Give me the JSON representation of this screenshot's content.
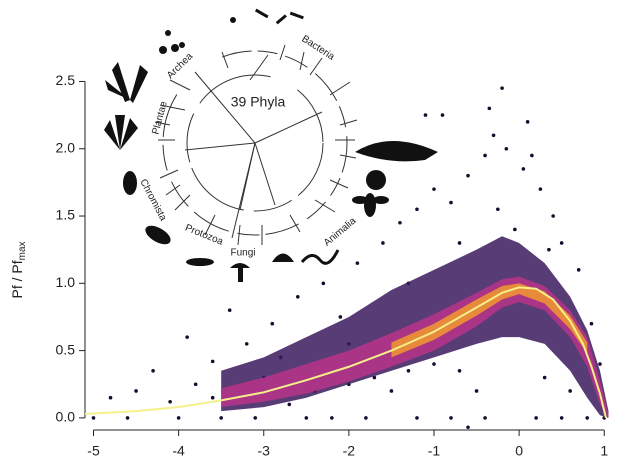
{
  "chart_data": {
    "type": "density-scatter",
    "y_label": "Pf / Pf",
    "y_label_subscript": "max",
    "xlim": [
      -5.1,
      1.15
    ],
    "ylim": [
      -0.09,
      2.6
    ],
    "xticks": [
      -5,
      -4,
      -3,
      -2,
      -1,
      0,
      1
    ],
    "yticks": [
      {
        "value": 0,
        "label": "0.0"
      },
      0.5,
      {
        "value": 1,
        "label": "1.0"
      },
      1.5,
      {
        "value": 2,
        "label": "2.0"
      },
      2.5
    ],
    "point_color": "#1a0b2e",
    "points": [
      [
        -4.3,
        0.35
      ],
      [
        -3.9,
        0.6
      ],
      [
        -3.6,
        0.42
      ],
      [
        -3.2,
        0.55
      ],
      [
        -3.4,
        0.8
      ],
      [
        -2.9,
        0.7
      ],
      [
        -2.6,
        0.9
      ],
      [
        -2.3,
        1.0
      ],
      [
        -2.1,
        0.75
      ],
      [
        -1.9,
        1.15
      ],
      [
        -1.6,
        1.3
      ],
      [
        -1.4,
        1.45
      ],
      [
        -1.2,
        1.55
      ],
      [
        -1.0,
        1.7
      ],
      [
        -0.8,
        1.6
      ],
      [
        -0.6,
        1.8
      ],
      [
        -0.4,
        1.95
      ],
      [
        -0.3,
        2.1
      ],
      [
        -0.2,
        2.45
      ],
      [
        -0.15,
        2.0
      ],
      [
        0.05,
        1.85
      ],
      [
        0.1,
        2.2
      ],
      [
        0.25,
        1.7
      ],
      [
        0.4,
        1.5
      ],
      [
        0.5,
        1.3
      ],
      [
        0.7,
        1.1
      ],
      [
        0.85,
        0.7
      ],
      [
        0.95,
        0.4
      ],
      [
        -0.9,
        2.25
      ],
      [
        -1.1,
        2.25
      ],
      [
        -0.35,
        2.3
      ],
      [
        0.15,
        1.95
      ],
      [
        -4.8,
        0.15
      ],
      [
        -4.5,
        0.2
      ],
      [
        -4.1,
        0.12
      ],
      [
        -3.8,
        0.25
      ],
      [
        -3.0,
        0.3
      ],
      [
        -2.7,
        0.1
      ],
      [
        -2.4,
        0.2
      ],
      [
        -2.0,
        0.25
      ],
      [
        -1.7,
        0.3
      ],
      [
        -1.5,
        0.2
      ],
      [
        -1.3,
        0.35
      ],
      [
        -0.7,
        0.35
      ],
      [
        -0.5,
        0.2
      ],
      [
        0.3,
        0.3
      ],
      [
        0.6,
        0.2
      ],
      [
        -5.0,
        0.0
      ],
      [
        -4.6,
        0.0
      ],
      [
        -4.0,
        0.0
      ],
      [
        -3.5,
        0.0
      ],
      [
        -3.1,
        0.0
      ],
      [
        -2.5,
        0.0
      ],
      [
        -2.2,
        0.0
      ],
      [
        -1.8,
        0.0
      ],
      [
        -1.2,
        0.0
      ],
      [
        -0.8,
        0.0
      ],
      [
        -0.4,
        0.0
      ],
      [
        0.2,
        0.0
      ],
      [
        0.5,
        0.0
      ],
      [
        0.8,
        0.0
      ],
      [
        1.0,
        0.0
      ],
      [
        -0.6,
        -0.07
      ],
      [
        -2.0,
        0.55
      ],
      [
        -1.0,
        0.4
      ],
      [
        -3.6,
        0.15
      ],
      [
        -2.8,
        0.45
      ],
      [
        -0.05,
        1.4
      ],
      [
        -0.25,
        1.55
      ],
      [
        0.35,
        1.25
      ],
      [
        -0.7,
        1.3
      ],
      [
        -1.3,
        1.0
      ]
    ],
    "bands": [
      {
        "color": "#3b1a5e",
        "x": [
          -3.5,
          -3,
          -2.5,
          -2,
          -1.5,
          -1,
          -0.5,
          -0.2,
          0,
          0.3,
          0.6,
          0.8,
          0.95,
          1.05
        ],
        "upper": [
          0.35,
          0.45,
          0.6,
          0.75,
          0.95,
          1.1,
          1.25,
          1.35,
          1.3,
          1.15,
          0.9,
          0.65,
          0.35,
          0.05
        ],
        "lower": [
          0.05,
          0.08,
          0.15,
          0.25,
          0.35,
          0.45,
          0.55,
          0.6,
          0.6,
          0.55,
          0.35,
          0.15,
          0.02,
          0.0
        ]
      },
      {
        "color": "#b8338a",
        "x": [
          -3.5,
          -3,
          -2.5,
          -2,
          -1.5,
          -1,
          -0.5,
          -0.2,
          0,
          0.3,
          0.6,
          0.8,
          0.95,
          1.05
        ],
        "upper": [
          0.22,
          0.3,
          0.4,
          0.5,
          0.63,
          0.77,
          0.93,
          1.03,
          1.05,
          0.98,
          0.8,
          0.6,
          0.28,
          0.03
        ],
        "lower": [
          0.08,
          0.12,
          0.18,
          0.27,
          0.38,
          0.5,
          0.68,
          0.82,
          0.86,
          0.8,
          0.6,
          0.38,
          0.1,
          0.0
        ]
      },
      {
        "color": "#f39a2e",
        "x": [
          -1.5,
          -1,
          -0.5,
          -0.2,
          0,
          0.3,
          0.6,
          0.8
        ],
        "upper": [
          0.56,
          0.7,
          0.88,
          0.98,
          1.0,
          0.94,
          0.76,
          0.56
        ],
        "lower": [
          0.45,
          0.58,
          0.76,
          0.88,
          0.92,
          0.85,
          0.66,
          0.48
        ]
      }
    ],
    "curve": {
      "color": "#f4f08a",
      "x": [
        -5.1,
        -4.5,
        -4,
        -3.5,
        -3,
        -2.5,
        -2,
        -1.5,
        -1,
        -0.5,
        -0.2,
        0,
        0.2,
        0.4,
        0.6,
        0.75,
        0.85,
        0.95,
        1.02
      ],
      "y": [
        0.03,
        0.05,
        0.08,
        0.13,
        0.19,
        0.28,
        0.38,
        0.5,
        0.64,
        0.82,
        0.93,
        0.97,
        0.96,
        0.88,
        0.72,
        0.55,
        0.38,
        0.18,
        0.0
      ]
    },
    "inset": {
      "title": "39 Phyla",
      "groups": [
        "Archea",
        "Bacteria",
        "Plantae",
        "Chromista",
        "Protozoa",
        "Fungi",
        "Animalia"
      ]
    }
  }
}
